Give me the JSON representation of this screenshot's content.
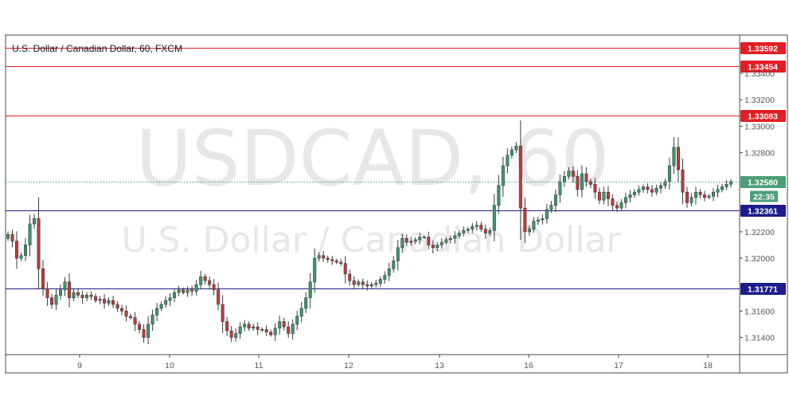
{
  "chart_data": {
    "type": "candlestick",
    "title": "U.S. Dollar / Canadian Dollar, 60, FXCM",
    "watermark": {
      "symbol": "USDCAD, 60",
      "name": "U.S. Dollar / Canadian Dollar"
    },
    "ylim": [
      1.3127,
      1.3369
    ],
    "y_ticks": [
      "1.31400",
      "1.31600",
      "1.32000",
      "1.32200",
      "1.32800",
      "1.33000",
      "1.33200",
      "1.33400"
    ],
    "x_ticks": [
      "9",
      "10",
      "11",
      "12",
      "13",
      "16",
      "17",
      "18"
    ],
    "last_price": "1.32580",
    "countdown": "22:35",
    "grid": false,
    "levels": [
      {
        "label": "1.33592",
        "value": 1.33592,
        "color": "#e31e25"
      },
      {
        "label": "1.33454",
        "value": 1.33454,
        "color": "#e31e25"
      },
      {
        "label": "1.33083",
        "value": 1.33083,
        "color": "#e31e25"
      },
      {
        "label": "1.32361",
        "value": 1.32361,
        "color": "#1c1c8c"
      },
      {
        "label": "1.31771",
        "value": 1.31771,
        "color": "#1c1c8c"
      }
    ],
    "colors": {
      "up": "#3a9a6f",
      "down": "#c23b3b",
      "last": "#4c9e78"
    },
    "closes": [
      1.3218,
      1.3213,
      1.32,
      1.3202,
      1.321,
      1.3226,
      1.323,
      1.3192,
      1.3177,
      1.317,
      1.3165,
      1.3172,
      1.3176,
      1.3182,
      1.317,
      1.3174,
      1.3172,
      1.317,
      1.3172,
      1.3171,
      1.3168,
      1.3169,
      1.3166,
      1.3168,
      1.3165,
      1.3162,
      1.316,
      1.3156,
      1.3155,
      1.315,
      1.3146,
      1.314,
      1.315,
      1.3157,
      1.3162,
      1.3165,
      1.3168,
      1.317,
      1.3174,
      1.3176,
      1.3174,
      1.3176,
      1.3175,
      1.318,
      1.3186,
      1.3183,
      1.318,
      1.3176,
      1.3165,
      1.3152,
      1.3145,
      1.314,
      1.3143,
      1.3148,
      1.315,
      1.3147,
      1.3148,
      1.3146,
      1.3146,
      1.3144,
      1.3142,
      1.3147,
      1.3152,
      1.3148,
      1.3143,
      1.315,
      1.3156,
      1.3162,
      1.317,
      1.3182,
      1.32,
      1.3202,
      1.32,
      1.3199,
      1.3198,
      1.3197,
      1.3196,
      1.3188,
      1.3183,
      1.318,
      1.3182,
      1.318,
      1.3179,
      1.318,
      1.3181,
      1.3184,
      1.3187,
      1.3192,
      1.3198,
      1.3208,
      1.3215,
      1.3212,
      1.3213,
      1.3214,
      1.3216,
      1.3216,
      1.321,
      1.3208,
      1.321,
      1.3212,
      1.3214,
      1.3215,
      1.3217,
      1.3219,
      1.3221,
      1.3222,
      1.3224,
      1.3225,
      1.3222,
      1.3219,
      1.3221,
      1.324,
      1.3255,
      1.327,
      1.3278,
      1.3282,
      1.3285,
      1.3238,
      1.322,
      1.3222,
      1.3228,
      1.3229,
      1.323,
      1.3237,
      1.324,
      1.3248,
      1.3258,
      1.3262,
      1.3266,
      1.3262,
      1.3252,
      1.3264,
      1.3258,
      1.3256,
      1.325,
      1.3244,
      1.325,
      1.3245,
      1.324,
      1.3238,
      1.3242,
      1.3246,
      1.3248,
      1.325,
      1.3252,
      1.3254,
      1.3252,
      1.325,
      1.3253,
      1.3255,
      1.3258,
      1.327,
      1.3284,
      1.3267,
      1.325,
      1.3242,
      1.3246,
      1.325,
      1.3248,
      1.3246,
      1.3247,
      1.325,
      1.3252,
      1.3254,
      1.3256,
      1.3258
    ],
    "series_start": 1.3215
  }
}
